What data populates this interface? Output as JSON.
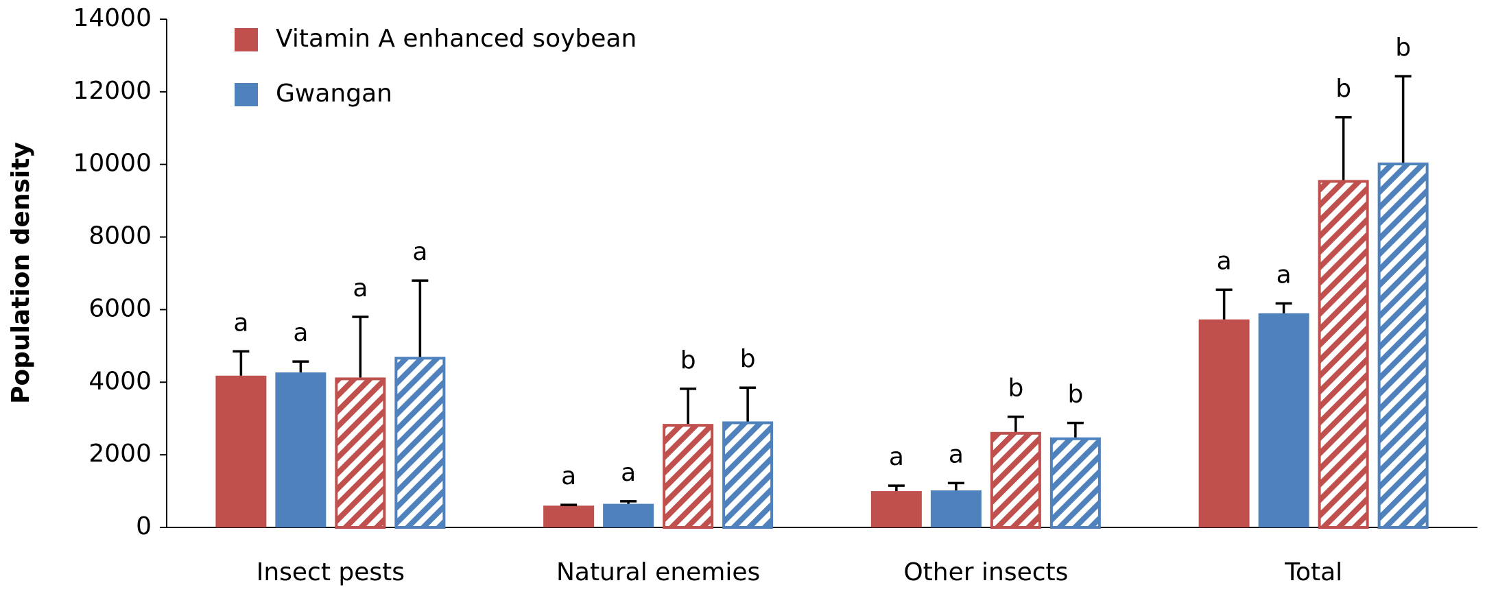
{
  "chart_data": {
    "type": "bar",
    "y_label": "Population density",
    "categories": [
      "Insect pests",
      "Natural enemies",
      "Other insects",
      "Total"
    ],
    "series": [
      {
        "name": "Vitamin A enhanced soybean",
        "color": "#c0504d",
        "pattern": "solid",
        "values": [
          4180,
          600,
          1000,
          5730
        ],
        "errors": [
          670,
          20,
          150,
          820
        ],
        "letters": [
          "a",
          "a",
          "a",
          "a"
        ]
      },
      {
        "name": "Gwangan",
        "color": "#4f81bd",
        "pattern": "solid",
        "values": [
          4270,
          650,
          1020,
          5900
        ],
        "errors": [
          300,
          70,
          200,
          270
        ],
        "letters": [
          "a",
          "a",
          "a",
          "a"
        ]
      },
      {
        "color": "#c0504d",
        "pattern": "hatch",
        "values": [
          4130,
          2850,
          2630,
          9570
        ],
        "errors": [
          1670,
          970,
          420,
          1730
        ],
        "letters": [
          "a",
          "b",
          "b",
          "b"
        ]
      },
      {
        "color": "#4f81bd",
        "pattern": "hatch",
        "values": [
          4700,
          2920,
          2480,
          10050
        ],
        "errors": [
          2100,
          930,
          400,
          2380
        ],
        "letters": [
          "a",
          "b",
          "b",
          "b"
        ]
      }
    ],
    "ylim": [
      0,
      14000
    ],
    "yticks": [
      0,
      2000,
      4000,
      6000,
      8000,
      10000,
      12000,
      14000
    ],
    "grid": false,
    "legend": "top-left"
  }
}
